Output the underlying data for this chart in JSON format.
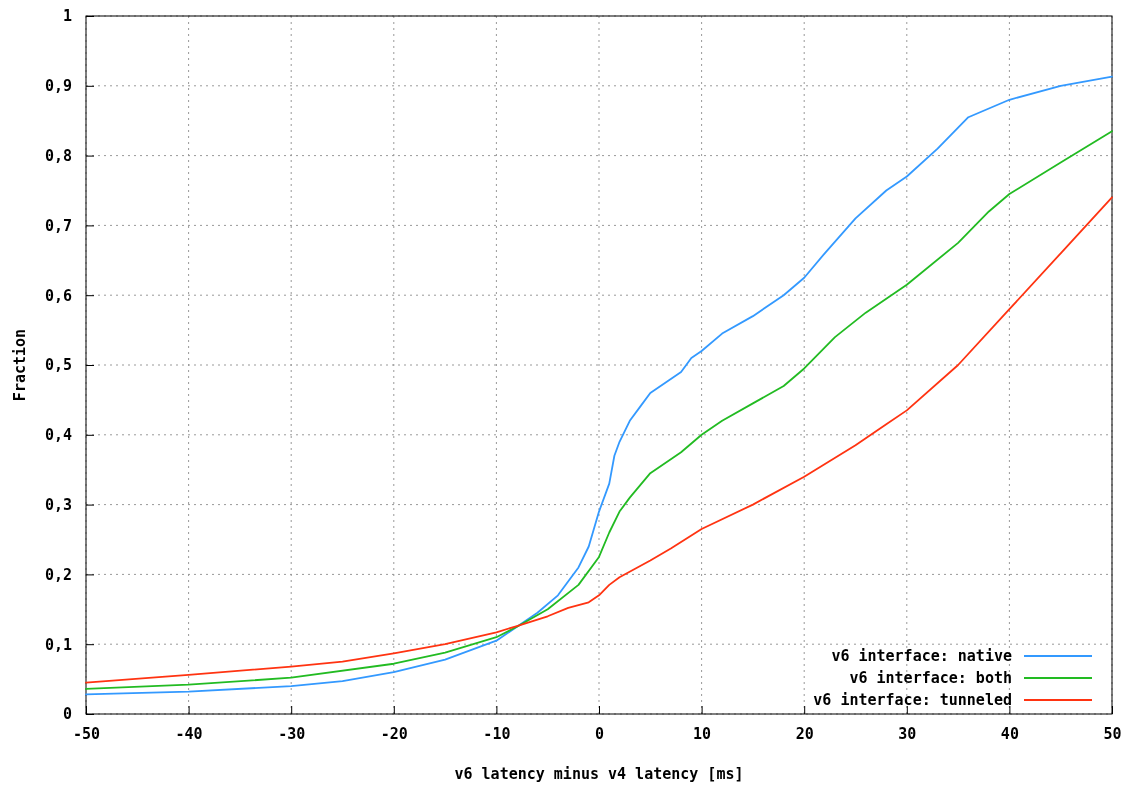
{
  "chart_data": {
    "type": "line",
    "xlabel": "v6 latency minus v4 latency [ms]",
    "ylabel": "Fraction",
    "xlim": [
      -50,
      50
    ],
    "xticks": [
      -50,
      -40,
      -30,
      -20,
      -10,
      0,
      10,
      20,
      30,
      40,
      50
    ],
    "ylim": [
      0,
      1
    ],
    "yticks": [
      0,
      {
        "value": 0.1,
        "label": "0,1"
      },
      {
        "value": 0.2,
        "label": "0,2"
      },
      {
        "value": 0.3,
        "label": "0,3"
      },
      {
        "value": 0.4,
        "label": "0,4"
      },
      {
        "value": 0.5,
        "label": "0,5"
      },
      {
        "value": 0.6,
        "label": "0,6"
      },
      {
        "value": 0.7,
        "label": "0,7"
      },
      {
        "value": 0.8,
        "label": "0,8"
      },
      {
        "value": 0.9,
        "label": "0,9"
      },
      1
    ],
    "grid": true,
    "legend": "bottom right",
    "line_style": "solid",
    "series": [
      {
        "name": "v6 interface: native",
        "color": "#3399ff",
        "x": [
          -50,
          -40,
          -30,
          -25,
          -20,
          -15,
          -10,
          -8,
          -6,
          -4,
          -2,
          -1,
          0,
          1,
          1.5,
          2,
          3,
          4,
          5,
          7,
          8,
          9,
          10,
          12,
          15,
          18,
          20,
          22,
          25,
          28,
          30,
          33,
          36,
          40,
          45,
          50
        ],
        "values": [
          0.028,
          0.032,
          0.04,
          0.047,
          0.06,
          0.078,
          0.105,
          0.125,
          0.145,
          0.17,
          0.21,
          0.24,
          0.29,
          0.33,
          0.37,
          0.39,
          0.42,
          0.44,
          0.46,
          0.48,
          0.49,
          0.51,
          0.52,
          0.545,
          0.57,
          0.6,
          0.625,
          0.66,
          0.71,
          0.75,
          0.77,
          0.81,
          0.855,
          0.88,
          0.9,
          0.913
        ]
      },
      {
        "name": "v6 interface: both",
        "color": "#22bb22",
        "x": [
          -50,
          -40,
          -30,
          -20,
          -15,
          -10,
          -8,
          -5,
          -2,
          0,
          1,
          2,
          3,
          5,
          7,
          8,
          10,
          12,
          15,
          18,
          20,
          23,
          26,
          30,
          35,
          38,
          40,
          45,
          50
        ],
        "values": [
          0.036,
          0.042,
          0.052,
          0.072,
          0.088,
          0.11,
          0.125,
          0.15,
          0.185,
          0.225,
          0.26,
          0.29,
          0.31,
          0.345,
          0.365,
          0.375,
          0.4,
          0.42,
          0.445,
          0.47,
          0.495,
          0.54,
          0.575,
          0.615,
          0.675,
          0.72,
          0.745,
          0.79,
          0.835
        ]
      },
      {
        "name": "v6 interface: tunneled",
        "color": "#ff3311",
        "x": [
          -50,
          -40,
          -30,
          -25,
          -20,
          -15,
          -10,
          -8,
          -5,
          -3,
          -1,
          0,
          1,
          2,
          5,
          7,
          10,
          15,
          20,
          25,
          28,
          30,
          35,
          40,
          45,
          50
        ],
        "values": [
          0.045,
          0.056,
          0.068,
          0.075,
          0.087,
          0.1,
          0.117,
          0.126,
          0.14,
          0.152,
          0.16,
          0.17,
          0.185,
          0.196,
          0.22,
          0.237,
          0.265,
          0.3,
          0.34,
          0.385,
          0.415,
          0.435,
          0.5,
          0.58,
          0.66,
          0.74
        ]
      }
    ]
  }
}
